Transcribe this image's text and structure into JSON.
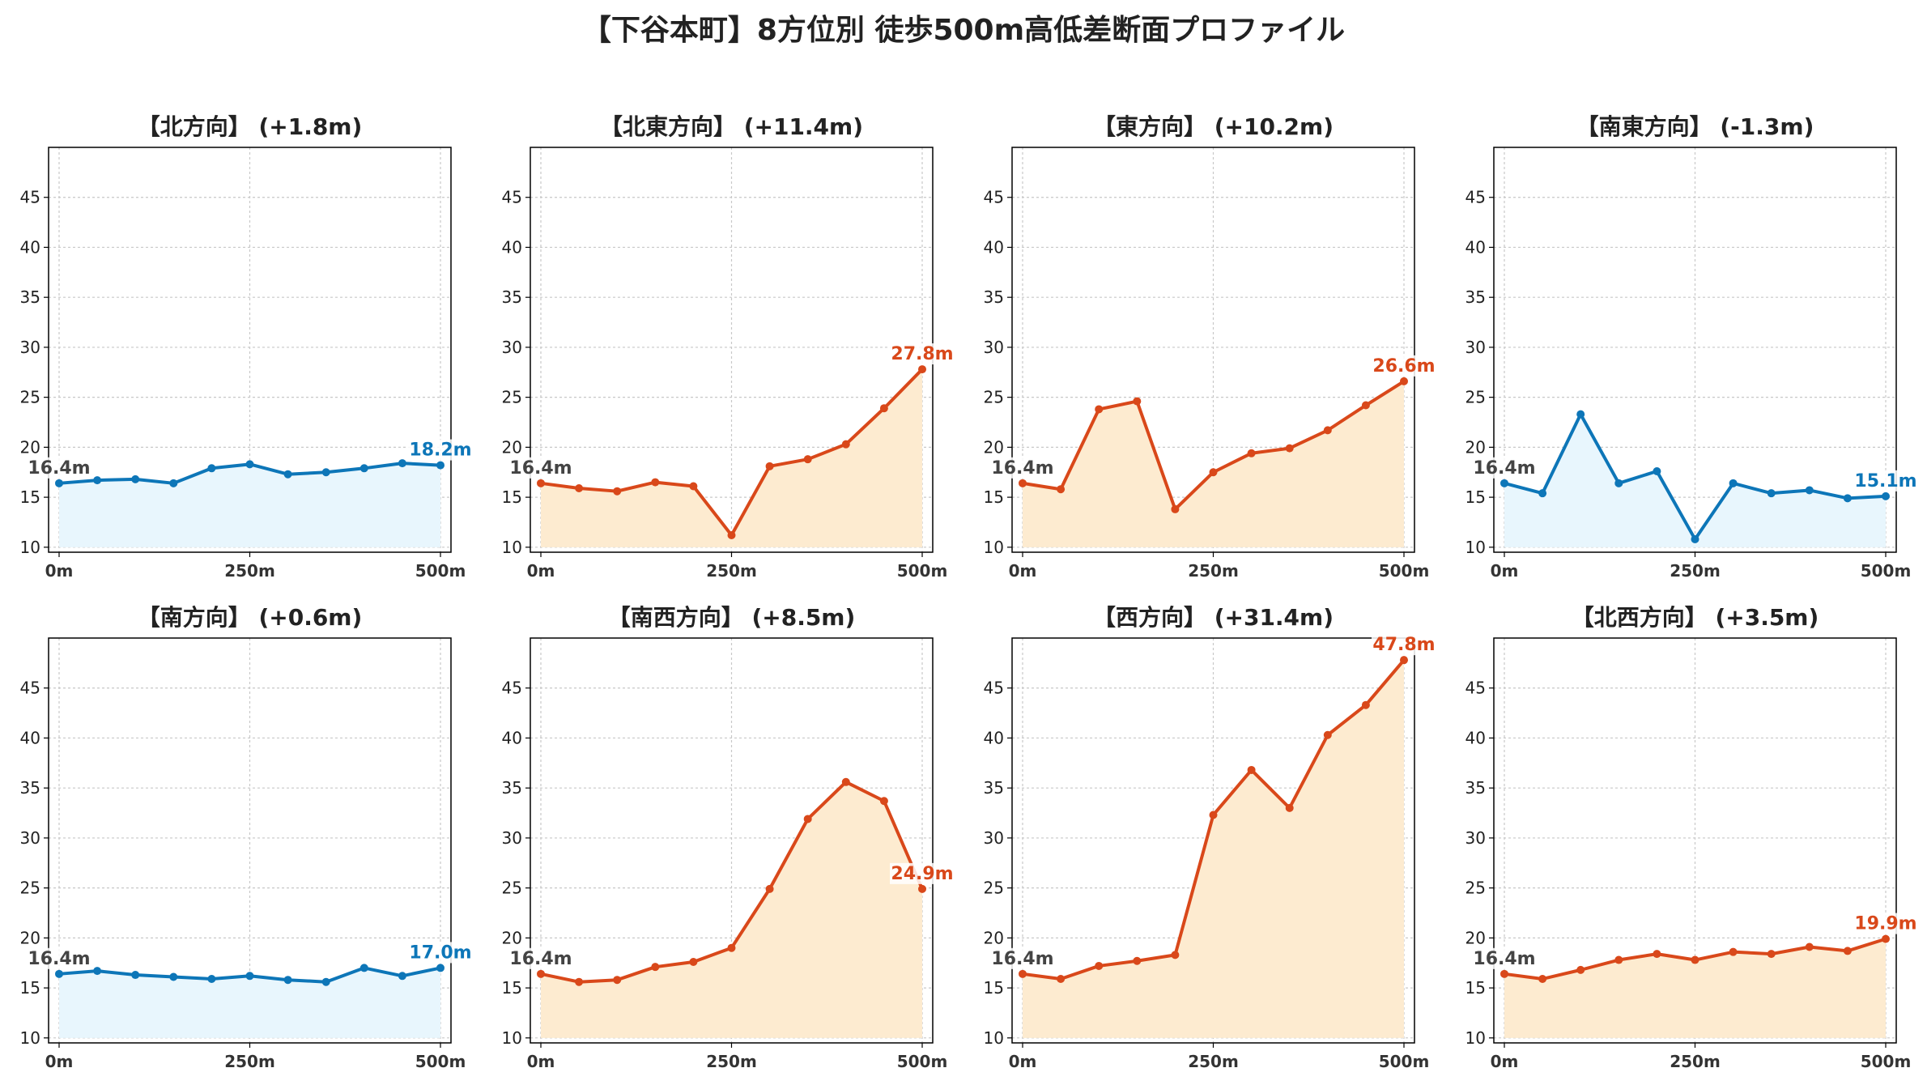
{
  "title": "【下谷本町】8方位別 徒歩500m高低差断面プロファイル",
  "colors": {
    "up_line": "#d9481a",
    "up_fill": "#fdebd0",
    "down_line": "#0d76b8",
    "down_fill": "#e8f6fd",
    "start_label": "#444444"
  },
  "chart_data": [
    {
      "type": "area",
      "title": "【北方向】 (+1.8m)",
      "trend": "down",
      "x": [
        0,
        50,
        100,
        150,
        200,
        250,
        300,
        350,
        400,
        450,
        500
      ],
      "values": [
        16.4,
        16.7,
        16.8,
        16.4,
        17.9,
        18.3,
        17.3,
        17.5,
        17.9,
        18.4,
        18.2
      ],
      "start_label": "16.4m",
      "end_label": "18.2m",
      "xticks": [
        "0m",
        "250m",
        "500m"
      ],
      "yticks": [
        10,
        15,
        20,
        25,
        30,
        35,
        40,
        45
      ],
      "ylim": [
        9.5,
        50
      ],
      "grid": true
    },
    {
      "type": "area",
      "title": "【北東方向】 (+11.4m)",
      "trend": "up",
      "x": [
        0,
        50,
        100,
        150,
        200,
        250,
        300,
        350,
        400,
        450,
        500
      ],
      "values": [
        16.4,
        15.9,
        15.6,
        16.5,
        16.1,
        11.2,
        18.1,
        18.8,
        20.3,
        23.9,
        27.8
      ],
      "start_label": "16.4m",
      "end_label": "27.8m",
      "xticks": [
        "0m",
        "250m",
        "500m"
      ],
      "yticks": [
        10,
        15,
        20,
        25,
        30,
        35,
        40,
        45
      ],
      "ylim": [
        9.5,
        50
      ],
      "grid": true
    },
    {
      "type": "area",
      "title": "【東方向】 (+10.2m)",
      "trend": "up",
      "x": [
        0,
        50,
        100,
        150,
        200,
        250,
        300,
        350,
        400,
        450,
        500
      ],
      "values": [
        16.4,
        15.8,
        23.8,
        24.6,
        13.8,
        17.5,
        19.4,
        19.9,
        21.7,
        24.2,
        26.6
      ],
      "start_label": "16.4m",
      "end_label": "26.6m",
      "xticks": [
        "0m",
        "250m",
        "500m"
      ],
      "yticks": [
        10,
        15,
        20,
        25,
        30,
        35,
        40,
        45
      ],
      "ylim": [
        9.5,
        50
      ],
      "grid": true
    },
    {
      "type": "area",
      "title": "【南東方向】 (-1.3m)",
      "trend": "down",
      "x": [
        0,
        50,
        100,
        150,
        200,
        250,
        300,
        350,
        400,
        450,
        500
      ],
      "values": [
        16.4,
        15.4,
        23.3,
        16.4,
        17.6,
        10.8,
        16.4,
        15.4,
        15.7,
        14.9,
        15.1
      ],
      "start_label": "16.4m",
      "end_label": "15.1m",
      "xticks": [
        "0m",
        "250m",
        "500m"
      ],
      "yticks": [
        10,
        15,
        20,
        25,
        30,
        35,
        40,
        45
      ],
      "ylim": [
        9.5,
        50
      ],
      "grid": true
    },
    {
      "type": "area",
      "title": "【南方向】 (+0.6m)",
      "trend": "down",
      "x": [
        0,
        50,
        100,
        150,
        200,
        250,
        300,
        350,
        400,
        450,
        500
      ],
      "values": [
        16.4,
        16.7,
        16.3,
        16.1,
        15.9,
        16.2,
        15.8,
        15.6,
        17.0,
        16.2,
        17.0
      ],
      "start_label": "16.4m",
      "end_label": "17.0m",
      "xticks": [
        "0m",
        "250m",
        "500m"
      ],
      "yticks": [
        10,
        15,
        20,
        25,
        30,
        35,
        40,
        45
      ],
      "ylim": [
        9.5,
        50
      ],
      "grid": true
    },
    {
      "type": "area",
      "title": "【南西方向】 (+8.5m)",
      "trend": "up",
      "x": [
        0,
        50,
        100,
        150,
        200,
        250,
        300,
        350,
        400,
        450,
        500
      ],
      "values": [
        16.4,
        15.6,
        15.8,
        17.1,
        17.6,
        19.0,
        24.9,
        31.9,
        35.6,
        33.7,
        24.9
      ],
      "start_label": "16.4m",
      "end_label": "24.9m",
      "xticks": [
        "0m",
        "250m",
        "500m"
      ],
      "yticks": [
        10,
        15,
        20,
        25,
        30,
        35,
        40,
        45
      ],
      "ylim": [
        9.5,
        50
      ],
      "grid": true
    },
    {
      "type": "area",
      "title": "【西方向】 (+31.4m)",
      "trend": "up",
      "x": [
        0,
        50,
        100,
        150,
        200,
        250,
        300,
        350,
        400,
        450,
        500
      ],
      "values": [
        16.4,
        15.9,
        17.2,
        17.7,
        18.3,
        32.3,
        36.8,
        33.0,
        40.3,
        43.3,
        47.8
      ],
      "start_label": "16.4m",
      "end_label": "47.8m",
      "xticks": [
        "0m",
        "250m",
        "500m"
      ],
      "yticks": [
        10,
        15,
        20,
        25,
        30,
        35,
        40,
        45
      ],
      "ylim": [
        9.5,
        50
      ],
      "grid": true
    },
    {
      "type": "area",
      "title": "【北西方向】 (+3.5m)",
      "trend": "up",
      "x": [
        0,
        50,
        100,
        150,
        200,
        250,
        300,
        350,
        400,
        450,
        500
      ],
      "values": [
        16.4,
        15.9,
        16.8,
        17.8,
        18.4,
        17.8,
        18.6,
        18.4,
        19.1,
        18.7,
        19.9
      ],
      "start_label": "16.4m",
      "end_label": "19.9m",
      "xticks": [
        "0m",
        "250m",
        "500m"
      ],
      "yticks": [
        10,
        15,
        20,
        25,
        30,
        35,
        40,
        45
      ],
      "ylim": [
        9.5,
        50
      ],
      "grid": true
    }
  ]
}
